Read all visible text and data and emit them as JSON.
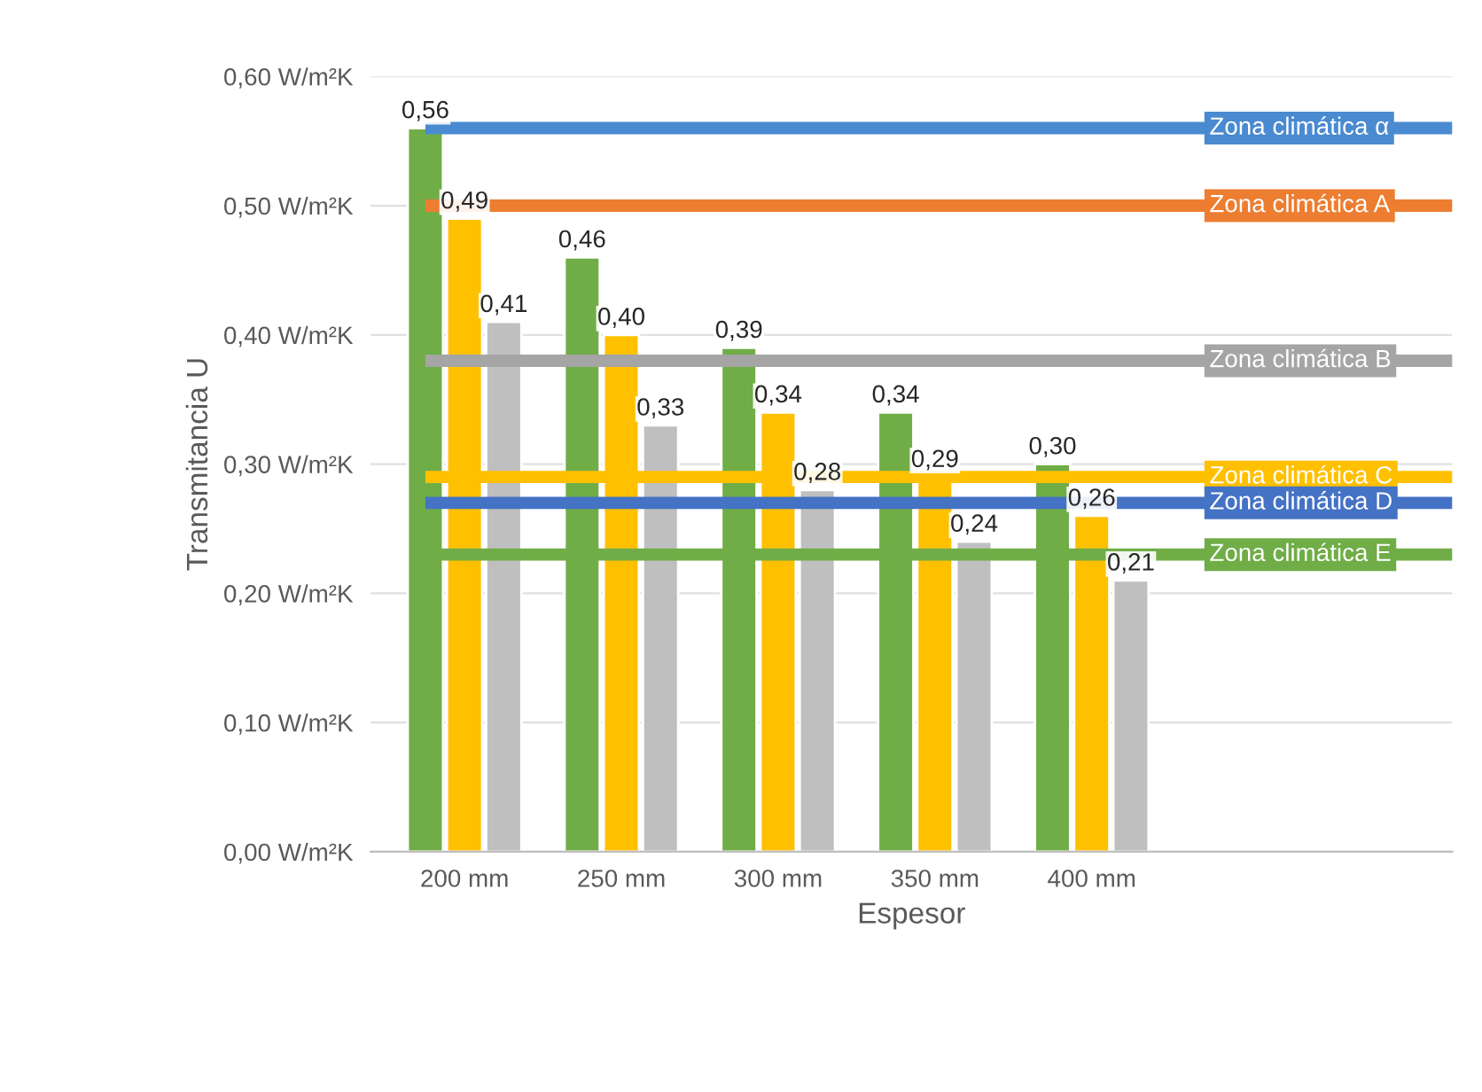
{
  "chart_data": {
    "type": "bar",
    "xlabel": "Espesor",
    "ylabel": "Transmitancia U",
    "categories": [
      "200 mm",
      "250 mm",
      "300 mm",
      "350 mm",
      "400 mm"
    ],
    "series": [
      {
        "color": "#70ad47",
        "values": [
          0.56,
          0.46,
          0.39,
          0.34,
          0.3
        ],
        "value_labels": [
          "0,56",
          "0,46",
          "0,39",
          "0,34",
          "0,30"
        ]
      },
      {
        "color": "#ffc000",
        "values": [
          0.49,
          0.4,
          0.34,
          0.29,
          0.26
        ],
        "value_labels": [
          "0,49",
          "0,40",
          "0,34",
          "0,29",
          "0,26"
        ]
      },
      {
        "color": "#bfbfbf",
        "values": [
          0.41,
          0.33,
          0.28,
          0.24,
          0.21
        ],
        "value_labels": [
          "0,41",
          "0,33",
          "0,28",
          "0,24",
          "0,21"
        ]
      }
    ],
    "ylim": [
      0,
      0.6
    ],
    "yticks": [
      {
        "value": 0,
        "label": "0,00 W/m²K"
      },
      {
        "value": 0.1,
        "label": "0,10 W/m²K"
      },
      {
        "value": 0.2,
        "label": "0,20 W/m²K"
      },
      {
        "value": 0.3,
        "label": "0,30 W/m²K"
      },
      {
        "value": 0.4,
        "label": "0,40 W/m²K"
      },
      {
        "value": 0.5,
        "label": "0,50 W/m²K"
      },
      {
        "value": 0.6,
        "label": "0,60 W/m²K"
      }
    ],
    "ref_lines": [
      {
        "axis": "y",
        "value": 0.56,
        "label": "Zona climática α",
        "color": "#4a8ad0"
      },
      {
        "axis": "y",
        "value": 0.5,
        "label": "Zona climática A",
        "color": "#ed7d31"
      },
      {
        "axis": "y",
        "value": 0.38,
        "label": "Zona climática B",
        "color": "#a5a5a5"
      },
      {
        "axis": "y",
        "value": 0.29,
        "label": "Zona climática C",
        "color": "#ffc000"
      },
      {
        "axis": "y",
        "value": 0.27,
        "label": "Zona climática D",
        "color": "#4472c4"
      },
      {
        "axis": "y",
        "value": 0.23,
        "label": "Zona climática E",
        "color": "#70ad47"
      }
    ],
    "grid": "y"
  }
}
